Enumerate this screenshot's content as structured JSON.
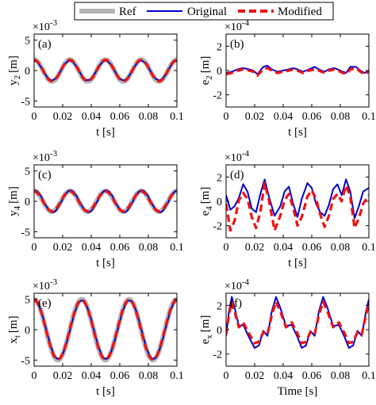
{
  "legend": {
    "items": [
      {
        "name": "Ref",
        "color": "#b3b3b3",
        "style": "thick"
      },
      {
        "name": "Original",
        "color": "#0000cc",
        "style": "solid"
      },
      {
        "name": "Modified",
        "color": "#ee1111",
        "style": "dashed"
      }
    ]
  },
  "chart_data": [
    {
      "type": "line",
      "label": "(a)",
      "ylabel_main": "y",
      "ylabel_sub": "2",
      "ylabel_unit": "[m]",
      "xlabel": "t [s]",
      "exponent_base": "×10",
      "exponent_power": "-3",
      "xlim": [
        0,
        0.1
      ],
      "ylim": [
        -6,
        6
      ],
      "xticks": [
        0,
        0.02,
        0.04,
        0.06,
        0.08,
        0.1
      ],
      "xtick_labels": [
        "0",
        "0.02",
        "0.04",
        "0.06",
        "0.08",
        "0.1"
      ],
      "yticks": [
        -5,
        0,
        5
      ],
      "ytick_labels": [
        "-5",
        "0",
        "5"
      ],
      "series": [
        {
          "name": "Ref",
          "kind": "sine",
          "amp": 1.8,
          "period": 0.025,
          "phase": -0.00625
        },
        {
          "name": "Original",
          "kind": "sine",
          "amp": 1.6,
          "period": 0.025,
          "phase": -0.00625
        },
        {
          "name": "Modified",
          "kind": "sine",
          "amp": 1.75,
          "period": 0.025,
          "phase": -0.00625
        }
      ]
    },
    {
      "type": "line",
      "label": "(b)",
      "ylabel_main": "e",
      "ylabel_sub": "2",
      "ylabel_unit": "[m]",
      "xlabel": "t [s]",
      "exponent_base": "×10",
      "exponent_power": "-4",
      "xlim": [
        0,
        0.1
      ],
      "ylim": [
        -3,
        3
      ],
      "xticks": [
        0,
        0.02,
        0.04,
        0.06,
        0.08,
        0.1
      ],
      "xtick_labels": [
        "0",
        "0.02",
        "0.04",
        "0.06",
        "0.08",
        "0.1"
      ],
      "yticks": [
        -2,
        0,
        2
      ],
      "ytick_labels": [
        "-2",
        "0",
        "2"
      ],
      "series": [
        {
          "name": "Original",
          "kind": "points",
          "x": [
            0,
            0.004,
            0.008,
            0.012,
            0.016,
            0.019,
            0.022,
            0.026,
            0.029,
            0.032,
            0.036,
            0.04,
            0.044,
            0.047,
            0.05,
            0.054,
            0.058,
            0.062,
            0.065,
            0.069,
            0.072,
            0.076,
            0.08,
            0.084,
            0.087,
            0.091,
            0.094,
            0.097,
            0.1
          ],
          "y": [
            -0.2,
            -0.1,
            0.1,
            0.2,
            0.1,
            0,
            -0.3,
            0.3,
            0.4,
            0.1,
            -0.1,
            0,
            0.1,
            0.2,
            0.1,
            -0.1,
            0.1,
            0.3,
            0.1,
            -0.1,
            0.1,
            0.2,
            0,
            -0.2,
            0.3,
            0.3,
            0,
            -0.2,
            0
          ]
        },
        {
          "name": "Modified",
          "kind": "points",
          "x": [
            0,
            0.004,
            0.008,
            0.012,
            0.016,
            0.019,
            0.022,
            0.026,
            0.029,
            0.032,
            0.036,
            0.04,
            0.044,
            0.047,
            0.05,
            0.054,
            0.058,
            0.062,
            0.065,
            0.069,
            0.072,
            0.076,
            0.08,
            0.084,
            0.087,
            0.091,
            0.094,
            0.097,
            0.1
          ],
          "y": [
            -0.3,
            -0.2,
            0,
            0.1,
            0,
            -0.1,
            -0.4,
            0.1,
            0.2,
            0,
            -0.2,
            -0.1,
            0,
            0.1,
            0,
            -0.2,
            0,
            0.1,
            0,
            -0.2,
            0,
            0.1,
            -0.1,
            -0.3,
            0.1,
            0.2,
            -0.1,
            -0.3,
            -0.1
          ]
        }
      ]
    },
    {
      "type": "line",
      "label": "(c)",
      "ylabel_main": "y",
      "ylabel_sub": "4",
      "ylabel_unit": "[m]",
      "xlabel": "t [s]",
      "exponent_base": "×10",
      "exponent_power": "-3",
      "xlim": [
        0,
        0.1
      ],
      "ylim": [
        -6,
        6
      ],
      "xticks": [
        0,
        0.02,
        0.04,
        0.06,
        0.08,
        0.1
      ],
      "xtick_labels": [
        "0",
        "0.02",
        "0.04",
        "0.06",
        "0.08",
        "0.1"
      ],
      "yticks": [
        -5,
        0,
        5
      ],
      "ytick_labels": [
        "-5",
        "0",
        "5"
      ],
      "series": [
        {
          "name": "Ref",
          "kind": "sine",
          "amp": 1.7,
          "period": 0.025,
          "phase": -0.00625
        },
        {
          "name": "Original",
          "kind": "sine",
          "amp": 1.8,
          "period": 0.025,
          "phase": -0.0058
        },
        {
          "name": "Modified",
          "kind": "sine",
          "amp": 1.65,
          "period": 0.025,
          "phase": -0.00625
        }
      ]
    },
    {
      "type": "line",
      "label": "(d)",
      "ylabel_main": "e",
      "ylabel_sub": "4",
      "ylabel_unit": "[m]",
      "xlabel": "t [s]",
      "exponent_base": "×10",
      "exponent_power": "-4",
      "xlim": [
        0,
        0.1
      ],
      "ylim": [
        -3,
        3
      ],
      "xticks": [
        0,
        0.02,
        0.04,
        0.06,
        0.08,
        0.1
      ],
      "xtick_labels": [
        "0",
        "0.02",
        "0.04",
        "0.06",
        "0.08",
        "0.1"
      ],
      "yticks": [
        -2,
        0,
        2
      ],
      "ytick_labels": [
        "-2",
        "0",
        "2"
      ],
      "series": [
        {
          "name": "Original",
          "kind": "points",
          "x": [
            0,
            0.003,
            0.006,
            0.009,
            0.012,
            0.015,
            0.018,
            0.021,
            0.024,
            0.027,
            0.03,
            0.034,
            0.038,
            0.041,
            0.044,
            0.047,
            0.05,
            0.053,
            0.057,
            0.06,
            0.063,
            0.066,
            0.069,
            0.072,
            0.075,
            0.078,
            0.081,
            0.084,
            0.087,
            0.09,
            0.093,
            0.096,
            0.1
          ],
          "y": [
            0.5,
            -0.7,
            -0.4,
            0.3,
            1.4,
            0.8,
            -0.6,
            -0.9,
            0.6,
            1.8,
            0.4,
            -1.2,
            -0.4,
            0.8,
            1.2,
            -0.2,
            -1.3,
            0.2,
            1.5,
            1.1,
            -0.2,
            -0.9,
            -1.2,
            -0.3,
            1.0,
            1.4,
            0.5,
            1.8,
            0.8,
            -1.4,
            -0.4,
            0.8,
            1.1
          ]
        },
        {
          "name": "Modified",
          "kind": "points",
          "x": [
            0,
            0.003,
            0.006,
            0.009,
            0.012,
            0.015,
            0.018,
            0.021,
            0.024,
            0.027,
            0.03,
            0.034,
            0.038,
            0.041,
            0.044,
            0.047,
            0.05,
            0.053,
            0.057,
            0.06,
            0.063,
            0.066,
            0.069,
            0.072,
            0.075,
            0.078,
            0.081,
            0.084,
            0.087,
            0.09,
            0.093,
            0.096,
            0.1
          ],
          "y": [
            -0.2,
            -2.4,
            -1.6,
            0.1,
            0.7,
            0.2,
            -1.3,
            -2.2,
            -0.9,
            1.5,
            0.1,
            -2.4,
            -1.2,
            0.1,
            0.6,
            -0.5,
            -2.0,
            -1.3,
            0.4,
            0.9,
            0.2,
            -1.1,
            -2.1,
            -1.2,
            0.2,
            0.6,
            0.0,
            1.3,
            0.4,
            -2.2,
            -1.4,
            -0.2,
            0.5
          ]
        }
      ]
    },
    {
      "type": "line",
      "label": "(e)",
      "ylabel_main": "x",
      "ylabel_sub": "t",
      "ylabel_unit": "[m]",
      "xlabel": "t [s]",
      "exponent_base": "×10",
      "exponent_power": "-3",
      "xlim": [
        0,
        0.1
      ],
      "ylim": [
        -6,
        6
      ],
      "xticks": [
        0,
        0.02,
        0.04,
        0.06,
        0.08,
        0.1
      ],
      "xtick_labels": [
        "0",
        "0.02",
        "0.04",
        "0.06",
        "0.08",
        "0.1"
      ],
      "yticks": [
        -5,
        0,
        5
      ],
      "ytick_labels": [
        "-5",
        "0",
        "5"
      ],
      "series": [
        {
          "name": "Ref",
          "kind": "sine",
          "amp": 5,
          "period": 0.0333,
          "phase": -0.00833
        },
        {
          "name": "Original",
          "kind": "sine",
          "amp": 4.8,
          "period": 0.0333,
          "phase": -0.0081
        },
        {
          "name": "Modified",
          "kind": "sine",
          "amp": 4.9,
          "period": 0.0333,
          "phase": -0.00833
        }
      ]
    },
    {
      "type": "line",
      "label": "(f)",
      "ylabel_main": "e",
      "ylabel_sub": "x",
      "ylabel_unit": "[m]",
      "xlabel": "Time [s]",
      "exponent_base": "×10",
      "exponent_power": "-4",
      "xlim": [
        0,
        0.1
      ],
      "ylim": [
        -3,
        3
      ],
      "xticks": [
        0,
        0.02,
        0.04,
        0.06,
        0.08,
        0.1
      ],
      "xtick_labels": [
        "0",
        "0.02",
        "0.04",
        "0.06",
        "0.08",
        "0.1"
      ],
      "yticks": [
        -2,
        0,
        2
      ],
      "ytick_labels": [
        "-2",
        "0",
        "2"
      ],
      "series": [
        {
          "name": "Original",
          "kind": "points",
          "x": [
            0,
            0.002,
            0.004,
            0.006,
            0.009,
            0.012,
            0.016,
            0.02,
            0.023,
            0.026,
            0.029,
            0.032,
            0.035,
            0.038,
            0.042,
            0.046,
            0.05,
            0.053,
            0.056,
            0.059,
            0.062,
            0.065,
            0.068,
            0.071,
            0.075,
            0.079,
            0.083,
            0.086,
            0.089,
            0.092,
            0.095,
            0.098,
            0.1
          ],
          "y": [
            -0.5,
            1.5,
            2.7,
            1.8,
            0.3,
            0.4,
            -0.6,
            -1.5,
            -1.3,
            -0.1,
            -0.5,
            1.5,
            2.7,
            1.8,
            0.3,
            0.4,
            -0.6,
            -1.5,
            -1.3,
            -0.1,
            -0.5,
            1.5,
            2.7,
            1.8,
            0.3,
            0.4,
            -0.6,
            -1.5,
            -1.3,
            -0.1,
            -0.5,
            1.5,
            2.5
          ]
        },
        {
          "name": "Modified",
          "kind": "points",
          "x": [
            0,
            0.002,
            0.004,
            0.006,
            0.009,
            0.012,
            0.016,
            0.02,
            0.023,
            0.026,
            0.029,
            0.032,
            0.035,
            0.038,
            0.042,
            0.046,
            0.05,
            0.053,
            0.056,
            0.059,
            0.062,
            0.065,
            0.068,
            0.071,
            0.075,
            0.079,
            0.083,
            0.086,
            0.089,
            0.092,
            0.095,
            0.098,
            0.1
          ],
          "y": [
            -0.4,
            1.2,
            2.3,
            1.5,
            0.2,
            0.6,
            -0.3,
            -1.1,
            -1.0,
            -0.2,
            -0.4,
            1.2,
            2.3,
            1.5,
            0.2,
            0.6,
            -0.3,
            -1.1,
            -1.0,
            -0.2,
            -0.4,
            1.2,
            2.3,
            1.5,
            0.2,
            0.6,
            -0.3,
            -1.1,
            -1.0,
            -0.2,
            -0.4,
            1.2,
            2.2
          ]
        }
      ]
    }
  ]
}
